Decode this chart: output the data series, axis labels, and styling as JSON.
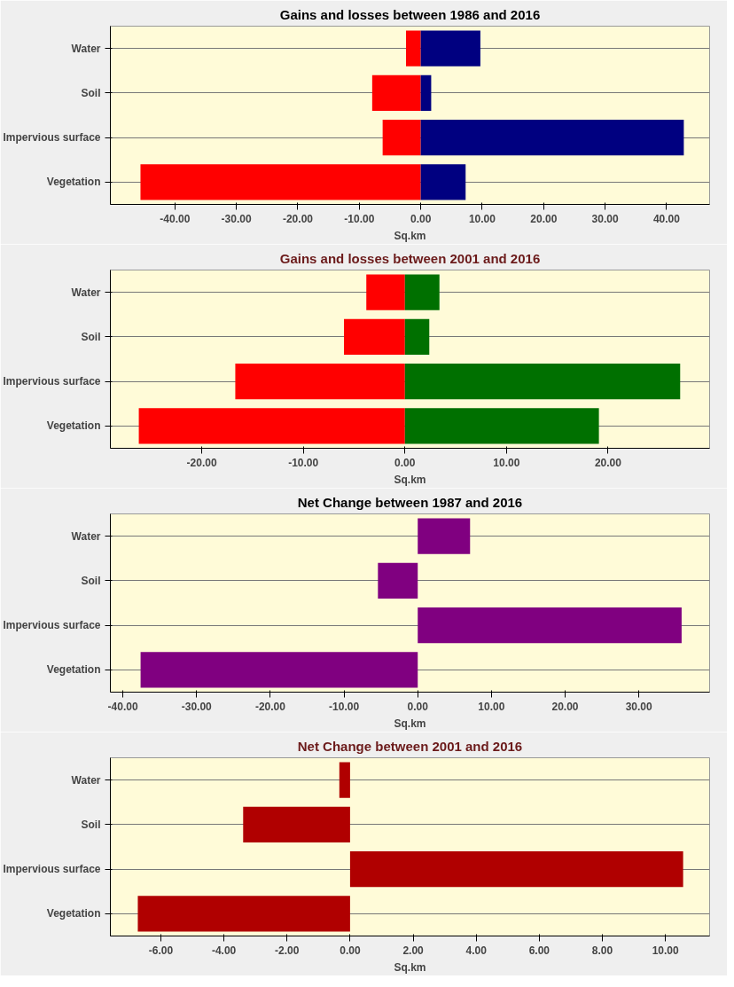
{
  "chart_data": [
    {
      "type": "bar",
      "orientation": "horizontal",
      "stacked": true,
      "title": "Gains and losses between 1986 and 2016",
      "xlabel": "Sq.km",
      "categories": [
        "Water",
        "Soil",
        "Impervious surface",
        "Vegetation"
      ],
      "series": [
        {
          "color": "#ff0000",
          "values": [
            -2.4,
            -7.9,
            -6.2,
            -45.6
          ]
        },
        {
          "color": "#000080",
          "values": [
            9.7,
            1.7,
            42.8,
            7.3
          ]
        }
      ],
      "xlim": [
        -50.5,
        47
      ],
      "xticks": [
        {
          "value": -40,
          "label": "-40.00"
        },
        {
          "value": -30,
          "label": "-30.00"
        },
        {
          "value": -20,
          "label": "-20.00"
        },
        {
          "value": -10,
          "label": "-10.00"
        },
        {
          "value": 0,
          "label": "0.00"
        },
        {
          "value": 10,
          "label": "10.00"
        },
        {
          "value": 20,
          "label": "20.00"
        },
        {
          "value": 30,
          "label": "30.00"
        },
        {
          "value": 40,
          "label": "40.00"
        }
      ],
      "grid": "y"
    },
    {
      "type": "bar",
      "orientation": "horizontal",
      "stacked": true,
      "title": "Gains and losses between 2001 and 2016",
      "xlabel": "Sq.km",
      "categories": [
        "Water",
        "Soil",
        "Impervious surface",
        "Vegetation"
      ],
      "series": [
        {
          "color": "#ff0000",
          "values": [
            -3.8,
            -6.0,
            -16.7,
            -26.2
          ]
        },
        {
          "color": "#007000",
          "values": [
            3.4,
            2.4,
            27.1,
            19.1
          ]
        }
      ],
      "xlim": [
        -29,
        30
      ],
      "xticks": [
        {
          "value": -20,
          "label": "-20.00"
        },
        {
          "value": -10,
          "label": "-10.00"
        },
        {
          "value": 0,
          "label": "0.00"
        },
        {
          "value": 10,
          "label": "10.00"
        },
        {
          "value": 20,
          "label": "20.00"
        }
      ],
      "grid": "y"
    },
    {
      "type": "bar",
      "orientation": "horizontal",
      "title": "Net Change between 1987 and 2016",
      "xlabel": "Sq.km",
      "categories": [
        "Water",
        "Soil",
        "Impervious surface",
        "Vegetation"
      ],
      "series": [
        {
          "color": "#800080",
          "values": [
            7.1,
            -5.4,
            35.8,
            -37.6
          ]
        }
      ],
      "xlim": [
        -41.7,
        39.6
      ],
      "xticks": [
        {
          "value": -40,
          "label": "-40.00"
        },
        {
          "value": -30,
          "label": "-30.00"
        },
        {
          "value": -20,
          "label": "-20.00"
        },
        {
          "value": -10,
          "label": "-10.00"
        },
        {
          "value": 0,
          "label": "0.00"
        },
        {
          "value": 10,
          "label": "10.00"
        },
        {
          "value": 20,
          "label": "20.00"
        },
        {
          "value": 30,
          "label": "30.00"
        }
      ],
      "grid": "y"
    },
    {
      "type": "bar",
      "orientation": "horizontal",
      "title": "Net Change between 2001 and 2016",
      "xlabel": "Sq.km",
      "categories": [
        "Water",
        "Soil",
        "Impervious surface",
        "Vegetation"
      ],
      "series": [
        {
          "color": "#b00000",
          "values": [
            -0.34,
            -3.39,
            10.56,
            -6.73
          ]
        }
      ],
      "xlim": [
        -7.6,
        11.4
      ],
      "xticks": [
        {
          "value": -6,
          "label": "-6.00"
        },
        {
          "value": -4,
          "label": "-4.00"
        },
        {
          "value": -2,
          "label": "-2.00"
        },
        {
          "value": 0,
          "label": "0.00"
        },
        {
          "value": 2,
          "label": "2.00"
        },
        {
          "value": 4,
          "label": "4.00"
        },
        {
          "value": 6,
          "label": "6.00"
        },
        {
          "value": 8,
          "label": "8.00"
        },
        {
          "value": 10,
          "label": "10.00"
        }
      ],
      "grid": "y"
    }
  ]
}
